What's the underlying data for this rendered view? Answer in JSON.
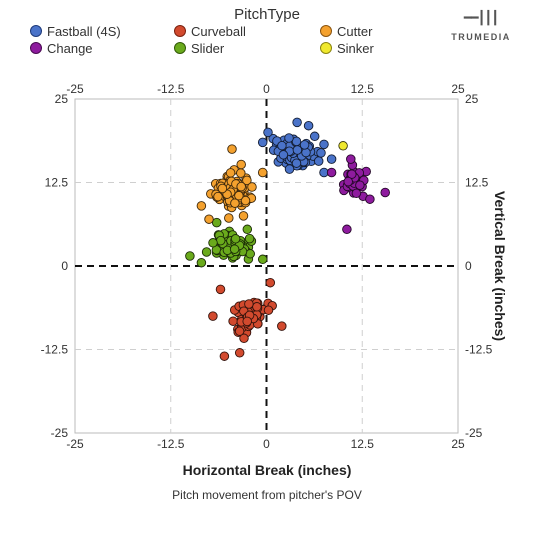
{
  "chart_data": {
    "type": "scatter",
    "title": "",
    "legend_title": "PitchType",
    "xlabel": "Horizontal Break (inches)",
    "ylabel": "Vertical Break (inches)",
    "subtitle": "Pitch movement from pitcher's POV",
    "xlim": [
      -25,
      25
    ],
    "ylim": [
      -25,
      25
    ],
    "x_ticks": [
      "-25",
      "-12.5",
      "0",
      "12.5",
      "25"
    ],
    "y_ticks": [
      "25",
      "12.5",
      "0",
      "-12.5",
      "-25"
    ],
    "grid": true,
    "legend_position": "top",
    "series": [
      {
        "name": "Fastball (4S)",
        "color": "#4a73c9",
        "clusters": [
          {
            "center": [
              3.6,
              17.0
            ],
            "spread": [
              2.7,
              1.8
            ],
            "count": 115,
            "extent": [
              [
                -0.5,
                7.5
              ],
              [
                13,
                21.5
              ]
            ]
          }
        ],
        "points": [
          [
            4,
            21.5
          ],
          [
            0.2,
            20
          ],
          [
            8.5,
            16
          ],
          [
            7.5,
            14
          ],
          [
            -0.5,
            18.5
          ],
          [
            5.5,
            21
          ],
          [
            3,
            14.5
          ]
        ]
      },
      {
        "name": "Change",
        "color": "#8e1b9e",
        "clusters": [
          {
            "center": [
              11.5,
              12.8
            ],
            "spread": [
              1.3,
              1.7
            ],
            "count": 42,
            "extent": [
              [
                8.5,
                15.5
              ],
              [
                9.5,
                16
              ]
            ]
          }
        ],
        "points": [
          [
            10.5,
            5.5
          ],
          [
            15.5,
            11
          ],
          [
            8.5,
            14
          ],
          [
            11,
            16
          ],
          [
            13.5,
            10
          ]
        ]
      },
      {
        "name": "Curveball",
        "color": "#d24a2e",
        "clusters": [
          {
            "center": [
              -1.8,
              -7.5
            ],
            "spread": [
              2.2,
              2.4
            ],
            "count": 55,
            "extent": [
              [
                -7,
                2.5
              ],
              [
                -13.5,
                -1
              ]
            ]
          }
        ],
        "points": [
          [
            -5.5,
            -13.5
          ],
          [
            -3.5,
            -13
          ],
          [
            -7,
            -7.5
          ],
          [
            2,
            -9
          ],
          [
            0.5,
            -2.5
          ],
          [
            -6,
            -3.5
          ]
        ]
      },
      {
        "name": "Slider",
        "color": "#6aaa1c",
        "clusters": [
          {
            "center": [
              -4.6,
              3.2
            ],
            "spread": [
              1.9,
              1.6
            ],
            "count": 88,
            "extent": [
              [
                -10,
                1
              ],
              [
                -1,
                7
              ]
            ]
          }
        ],
        "points": [
          [
            -10,
            1.5
          ],
          [
            -8.5,
            0.5
          ],
          [
            -0.5,
            1
          ],
          [
            -6.5,
            6.5
          ],
          [
            -2.5,
            5.5
          ]
        ]
      },
      {
        "name": "Cutter",
        "color": "#f4a12e",
        "clusters": [
          {
            "center": [
              -4.3,
              11.0
            ],
            "spread": [
              1.9,
              2.3
            ],
            "count": 102,
            "extent": [
              [
                -8.5,
                0
              ],
              [
                6.5,
                17.5
              ]
            ]
          }
        ],
        "points": [
          [
            -4.5,
            17.5
          ],
          [
            -8.5,
            9
          ],
          [
            -7.5,
            7
          ],
          [
            -0.5,
            14
          ],
          [
            -3,
            7.5
          ]
        ]
      },
      {
        "name": "Sinker",
        "color": "#f0e92e",
        "clusters": [],
        "points": [
          [
            10,
            18
          ]
        ]
      }
    ]
  }
}
